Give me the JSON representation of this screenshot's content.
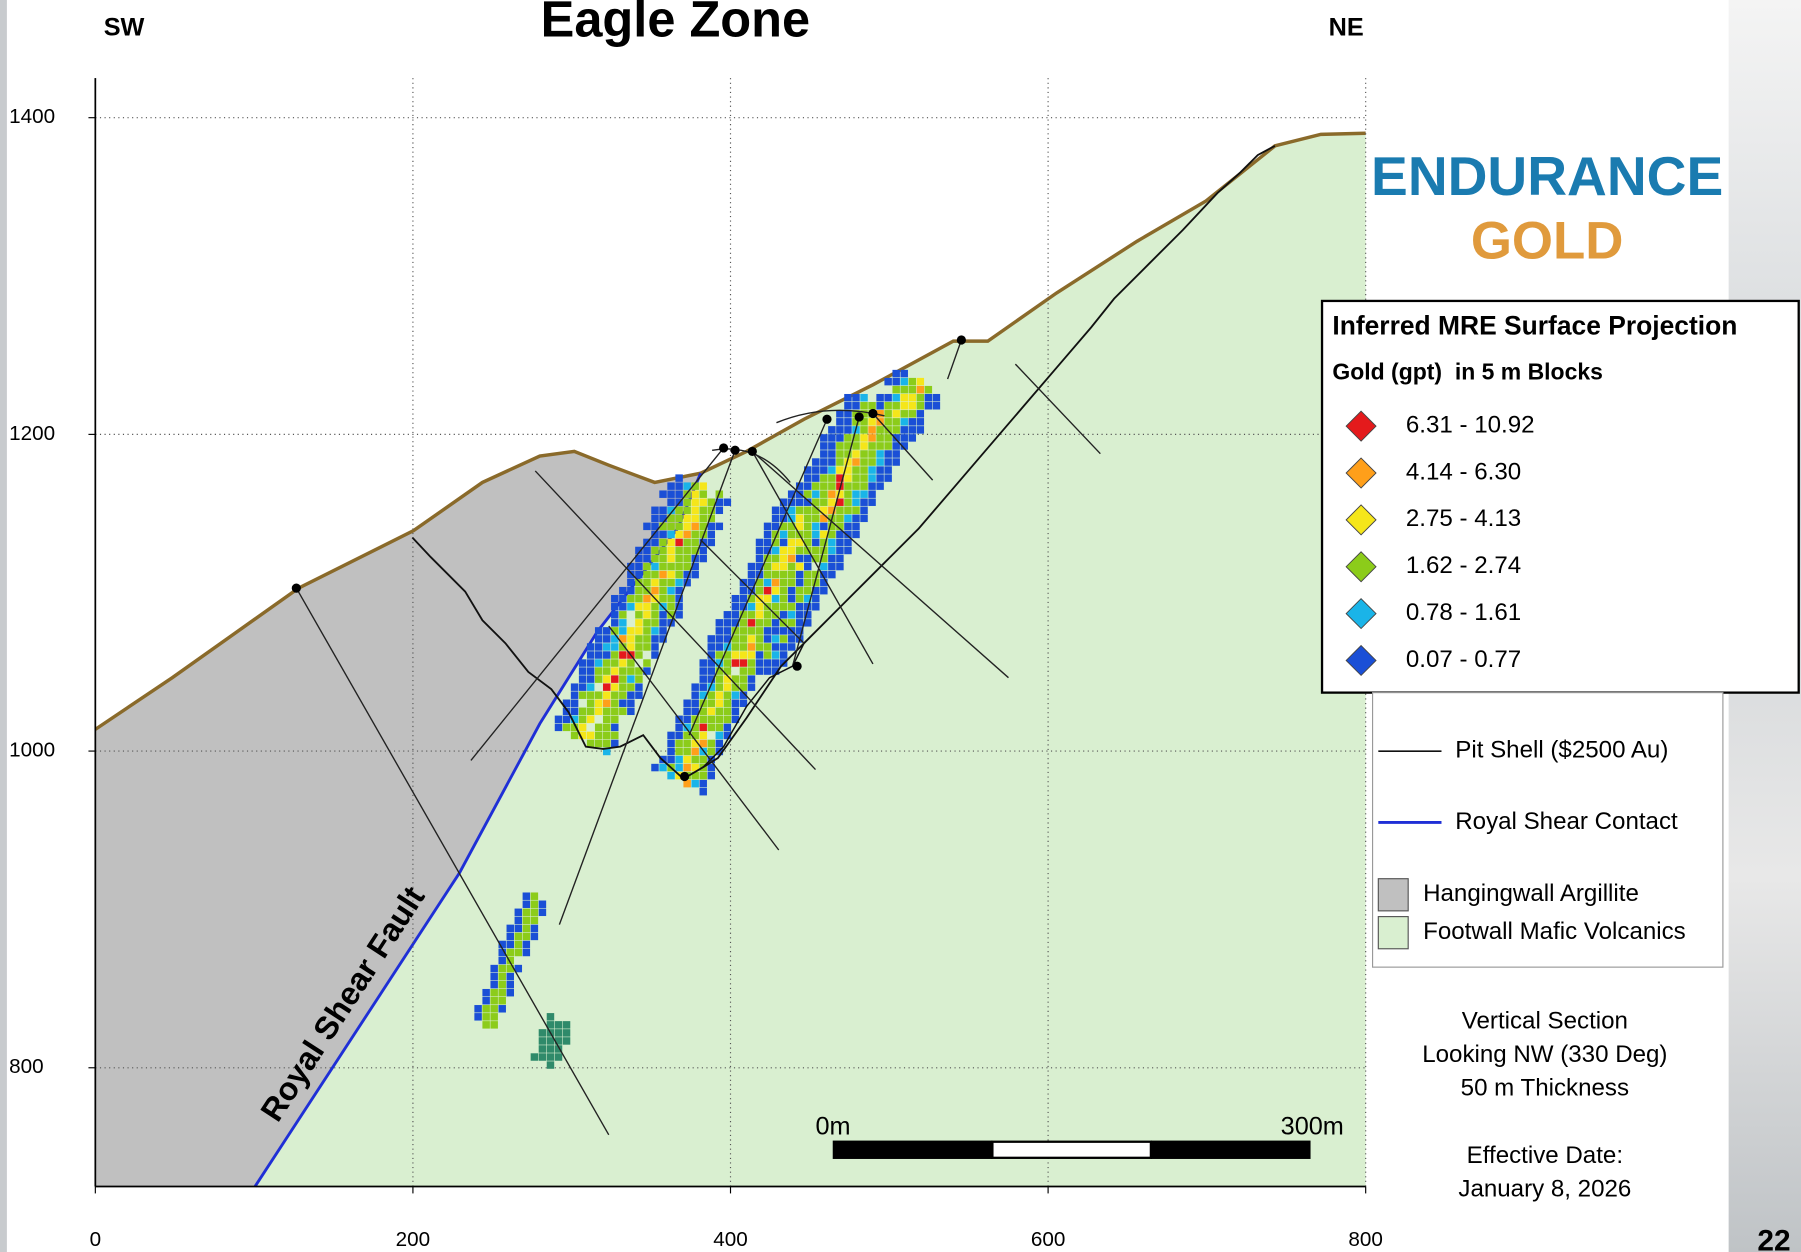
{
  "title": "Eagle Zone",
  "left_direction": "SW",
  "right_direction": "NE",
  "axes": {
    "xlim": [
      0,
      800
    ],
    "ylim": [
      725,
      1425
    ],
    "xticks": [
      0,
      200,
      400,
      600,
      800
    ],
    "yticks": [
      800,
      1000,
      1200,
      1400
    ]
  },
  "logo": {
    "line1": "ENDURANCE",
    "line2": "GOLD"
  },
  "legend": {
    "title": "Inferred MRE Surface Projection",
    "subtitle": "Gold (gpt)  in 5 m Blocks",
    "items": [
      {
        "label": "6.31 - 10.92",
        "color": "#e41a1c"
      },
      {
        "label": "4.14 - 6.30",
        "color": "#ff9f1a"
      },
      {
        "label": "2.75 - 4.13",
        "color": "#f5e61a"
      },
      {
        "label": "1.62 - 2.74",
        "color": "#8ccc1a"
      },
      {
        "label": "0.78 - 1.61",
        "color": "#1ab4e8"
      },
      {
        "label": "0.07 - 0.77",
        "color": "#1a4fd6"
      }
    ]
  },
  "features": [
    {
      "label": "Pit Shell ($2500 Au)",
      "color": "#111111",
      "kind": "line"
    },
    {
      "label": "Royal Shear Contact",
      "color": "#1f2fd6",
      "kind": "line"
    },
    {
      "label": "Hangingwall Argillite",
      "color": "#c0c0c0",
      "kind": "fill"
    },
    {
      "label": "Footwall Mafic Volcanics",
      "color": "#d9efd0",
      "kind": "fill"
    }
  ],
  "fault_label": "Royal Shear Fault",
  "scale_bar": {
    "start": "0m",
    "end": "300m"
  },
  "notes": [
    "Vertical Section",
    "Looking NW (330 Deg)",
    "50 m Thickness"
  ],
  "effective_date": [
    "Effective Date:",
    "January 8, 2026"
  ],
  "page_number": "22"
}
